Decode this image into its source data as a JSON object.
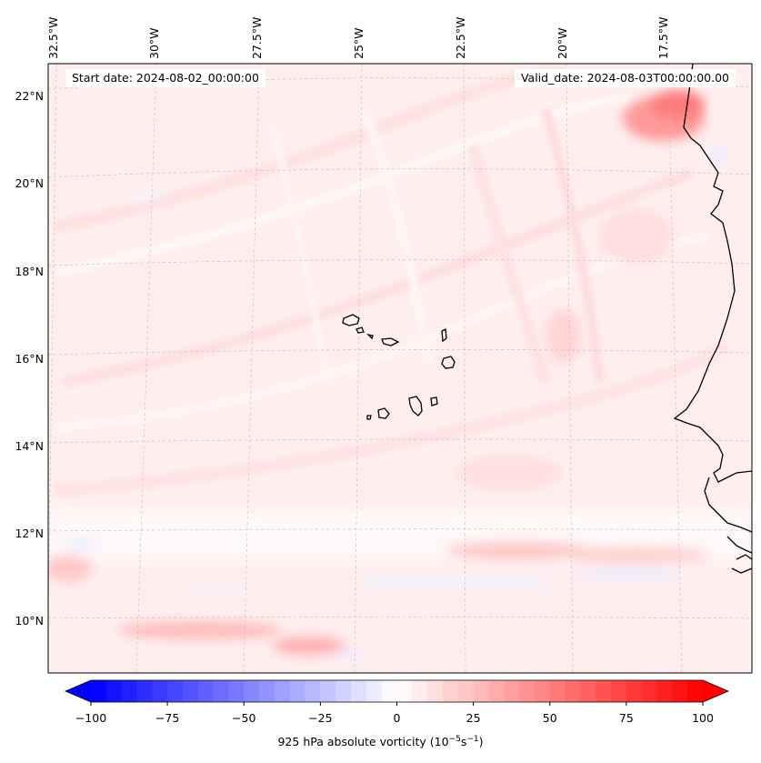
{
  "map": {
    "start_date_label": "Start date: 2024-08-02_00:00:00",
    "valid_date_label": "Valid_date: 2024-08-03T00:00:00.00",
    "lon_labels": [
      "32.5°W",
      "30°W",
      "27.5°W",
      "25°W",
      "22.5°W",
      "20°W",
      "17.5°W"
    ],
    "lat_labels": [
      "22°N",
      "20°N",
      "18°N",
      "16°N",
      "14°N",
      "12°N",
      "10°N"
    ],
    "colors": {
      "negative": "#0000ff",
      "neutral": "#ffffff",
      "positive": "#ff0000",
      "coastline": "#000000"
    }
  },
  "colorbar": {
    "label_prefix": "925 hPa absolute vorticity (10",
    "label_exp1": "−5",
    "label_mid": "s",
    "label_exp2": "−1",
    "label_suffix": ")",
    "min": -100,
    "max": 100,
    "ticks": [
      "−100",
      "−75",
      "−50",
      "−25",
      "0",
      "25",
      "50",
      "75",
      "100"
    ],
    "tick_values": [
      -100,
      -75,
      -50,
      -25,
      0,
      25,
      50,
      75,
      100
    ],
    "extend": "both"
  }
}
